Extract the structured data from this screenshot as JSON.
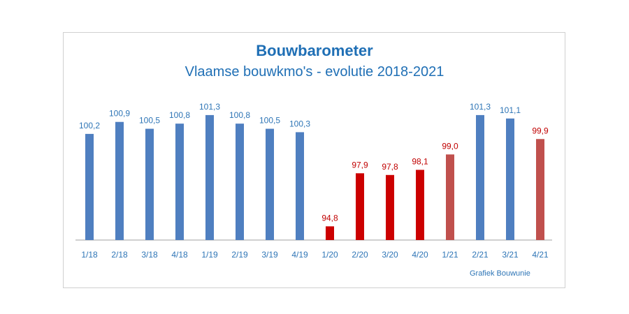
{
  "colors": {
    "blue": "#4f7fc0",
    "red_2020": "#cc0000",
    "red_2021": "#c0504d",
    "label_blue": "#2e75b6",
    "label_red": "#c00000",
    "axis": "#a0a0a0",
    "title": "#1f6fb5"
  },
  "chart_data": {
    "type": "bar",
    "title": "Bouwbarometer",
    "subtitle": "Vlaamse bouwkmo's - evolutie 2018-2021",
    "credit": "Grafiek Bouwunie",
    "xlabel": "",
    "ylabel": "",
    "ylim": [
      94,
      102
    ],
    "grid": false,
    "legend": "none",
    "categories": [
      "1/18",
      "2/18",
      "3/18",
      "4/18",
      "1/19",
      "2/19",
      "3/19",
      "4/19",
      "1/20",
      "2/20",
      "3/20",
      "4/20",
      "1/21",
      "2/21",
      "3/21",
      "4/21"
    ],
    "values": [
      100.2,
      100.9,
      100.5,
      100.8,
      101.3,
      100.8,
      100.5,
      100.3,
      94.8,
      97.9,
      97.8,
      98.1,
      99.0,
      101.3,
      101.1,
      99.9
    ],
    "value_labels": [
      "100,2",
      "100,9",
      "100,5",
      "100,8",
      "101,3",
      "100,8",
      "100,5",
      "100,3",
      "94,8",
      "97,9",
      "97,8",
      "98,1",
      "99,0",
      "101,3",
      "101,1",
      "99,9"
    ],
    "bar_colors": [
      "blue",
      "blue",
      "blue",
      "blue",
      "blue",
      "blue",
      "blue",
      "blue",
      "red_2020",
      "red_2020",
      "red_2020",
      "red_2020",
      "red_2021",
      "blue",
      "blue",
      "red_2021"
    ]
  }
}
